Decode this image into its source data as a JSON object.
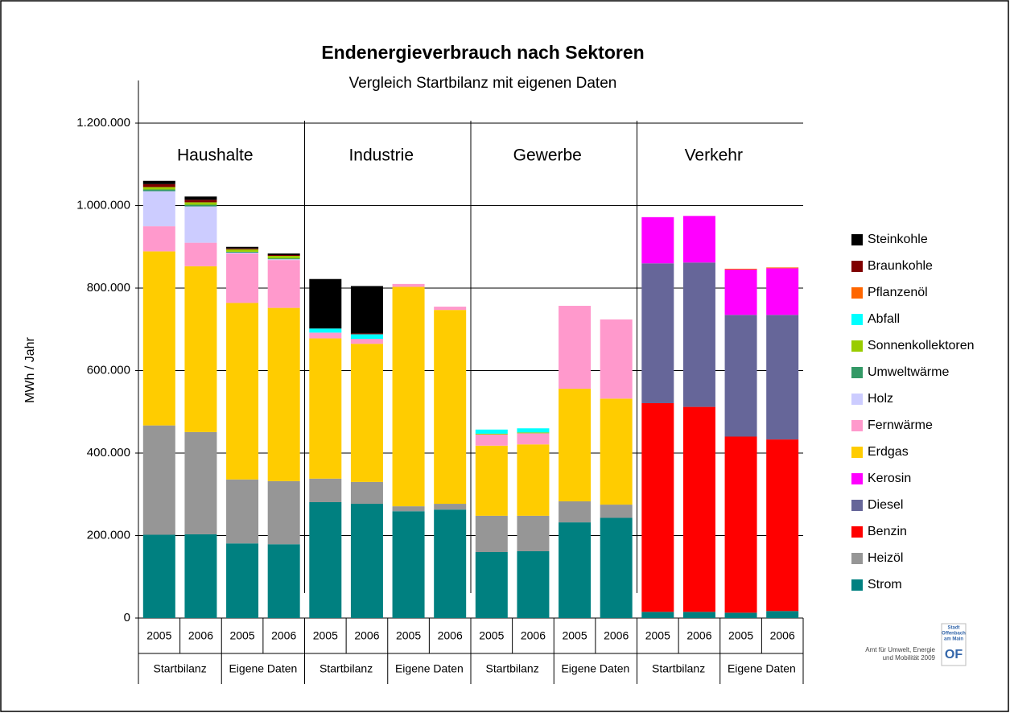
{
  "chart_data": {
    "type": "stacked_bar",
    "title": "Endenergieverbrauch nach Sektoren",
    "subtitle": "Vergleich Startbilanz mit eigenen Daten",
    "ylabel": "MWh / Jahr",
    "sectors": [
      "Haushalte",
      "Industrie",
      "Gewerbe",
      "Verkehr"
    ],
    "groups": [
      "Startbilanz",
      "Eigene Daten",
      "Startbilanz",
      "Eigene Daten",
      "Startbilanz",
      "Eigene Daten",
      "Startbilanz",
      "Eigene Daten"
    ],
    "categories": [
      "2005",
      "2006",
      "2005",
      "2006",
      "2005",
      "2006",
      "2005",
      "2006",
      "2005",
      "2006",
      "2005",
      "2006",
      "2005",
      "2006",
      "2005",
      "2006"
    ],
    "ylim": [
      0,
      1200000
    ],
    "yticks": [
      0,
      {
        "value": 200000,
        "label": "200.000"
      },
      {
        "value": 400000,
        "label": "400.000"
      },
      {
        "value": 600000,
        "label": "600.000"
      },
      {
        "value": 800000,
        "label": "800.000"
      },
      {
        "value": 1000000,
        "label": "1.000.000"
      },
      {
        "value": 1200000,
        "label": "1.200.000"
      }
    ],
    "grid": true,
    "legend": "right",
    "series": [
      {
        "name": "Strom",
        "color": "#008080",
        "values": [
          202000,
          203000,
          181000,
          179000,
          281000,
          277000,
          259000,
          263000,
          160000,
          162000,
          232000,
          243000,
          15000,
          15000,
          13000,
          17000
        ]
      },
      {
        "name": "Heizöl",
        "color": "#969696",
        "values": [
          265000,
          248000,
          155000,
          153000,
          57000,
          53000,
          12000,
          14000,
          88000,
          86000,
          51000,
          32000,
          0,
          0,
          0,
          0
        ]
      },
      {
        "name": "Benzin",
        "color": "#ff0000",
        "values": [
          0,
          0,
          0,
          0,
          0,
          0,
          0,
          0,
          0,
          0,
          0,
          0,
          506000,
          497000,
          427000,
          416000
        ]
      },
      {
        "name": "Diesel",
        "color": "#666699",
        "values": [
          0,
          0,
          0,
          0,
          0,
          0,
          0,
          0,
          0,
          0,
          0,
          0,
          339000,
          350000,
          295000,
          302000
        ]
      },
      {
        "name": "Kerosin",
        "color": "#ff00ff",
        "values": [
          0,
          0,
          0,
          0,
          0,
          0,
          0,
          0,
          0,
          0,
          0,
          0,
          112000,
          113000,
          110000,
          113000
        ]
      },
      {
        "name": "Erdgas",
        "color": "#ffcc00",
        "values": [
          422000,
          402000,
          428000,
          420000,
          340000,
          335000,
          532000,
          470000,
          170000,
          173000,
          273000,
          257000,
          0,
          0,
          0,
          0
        ]
      },
      {
        "name": "Fernwärme",
        "color": "#ff99cc",
        "values": [
          61000,
          57000,
          120000,
          116000,
          14000,
          12000,
          7000,
          8000,
          27000,
          27000,
          201000,
          192000,
          0,
          0,
          0,
          0
        ]
      },
      {
        "name": "Holz",
        "color": "#ccccff",
        "values": [
          85000,
          88000,
          2000,
          2000,
          0,
          0,
          0,
          0,
          0,
          0,
          0,
          0,
          0,
          0,
          0,
          0
        ]
      },
      {
        "name": "Umweltwärme",
        "color": "#339966",
        "values": [
          4000,
          4000,
          2000,
          2000,
          0,
          0,
          0,
          0,
          0,
          0,
          0,
          0,
          0,
          0,
          0,
          0
        ]
      },
      {
        "name": "Sonnenkollektoren",
        "color": "#99cc00",
        "values": [
          6000,
          6000,
          6000,
          6000,
          0,
          0,
          0,
          0,
          2000,
          2000,
          0,
          0,
          0,
          0,
          0,
          0
        ]
      },
      {
        "name": "Abfall",
        "color": "#00ffff",
        "values": [
          0,
          0,
          0,
          0,
          10000,
          11000,
          0,
          0,
          10000,
          10000,
          0,
          0,
          0,
          0,
          0,
          0
        ]
      },
      {
        "name": "Pflanzenöl",
        "color": "#ff6600",
        "values": [
          0,
          0,
          0,
          0,
          0,
          0,
          0,
          0,
          0,
          0,
          0,
          0,
          0,
          0,
          2000,
          2000
        ]
      },
      {
        "name": "Braunkohle",
        "color": "#800000",
        "values": [
          7000,
          6000,
          2000,
          2000,
          0,
          2000,
          0,
          0,
          0,
          0,
          0,
          0,
          0,
          0,
          0,
          0
        ]
      },
      {
        "name": "Steinkohle",
        "color": "#000000",
        "values": [
          8000,
          8000,
          4000,
          4000,
          120000,
          115000,
          0,
          0,
          0,
          0,
          0,
          0,
          0,
          0,
          0,
          0
        ]
      }
    ]
  },
  "footer": {
    "credit": [
      "Amt für Umwelt, Energie",
      "und Mobilität 2009"
    ],
    "logo": [
      "Stadt",
      "Offenbach",
      "am Main",
      "OF"
    ]
  }
}
